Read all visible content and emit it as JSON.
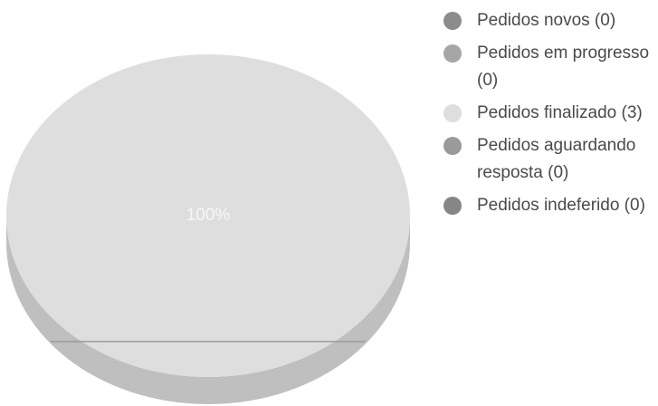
{
  "chart_data": {
    "type": "pie",
    "title": "",
    "categories": [
      "Pedidos novos (0)",
      "Pedidos em progresso (0)",
      "Pedidos finalizado (3)",
      "Pedidos aguardando resposta (0)",
      "Pedidos indeferido (0)"
    ],
    "values": [
      0,
      0,
      3,
      0,
      0
    ],
    "colors": [
      "#8c8c8c",
      "#a6a6a6",
      "#dedede",
      "#9a9a9a",
      "#868686"
    ],
    "data_labels": [
      "",
      "",
      "100%",
      "",
      ""
    ],
    "legend_position": "right",
    "style": "3d"
  }
}
